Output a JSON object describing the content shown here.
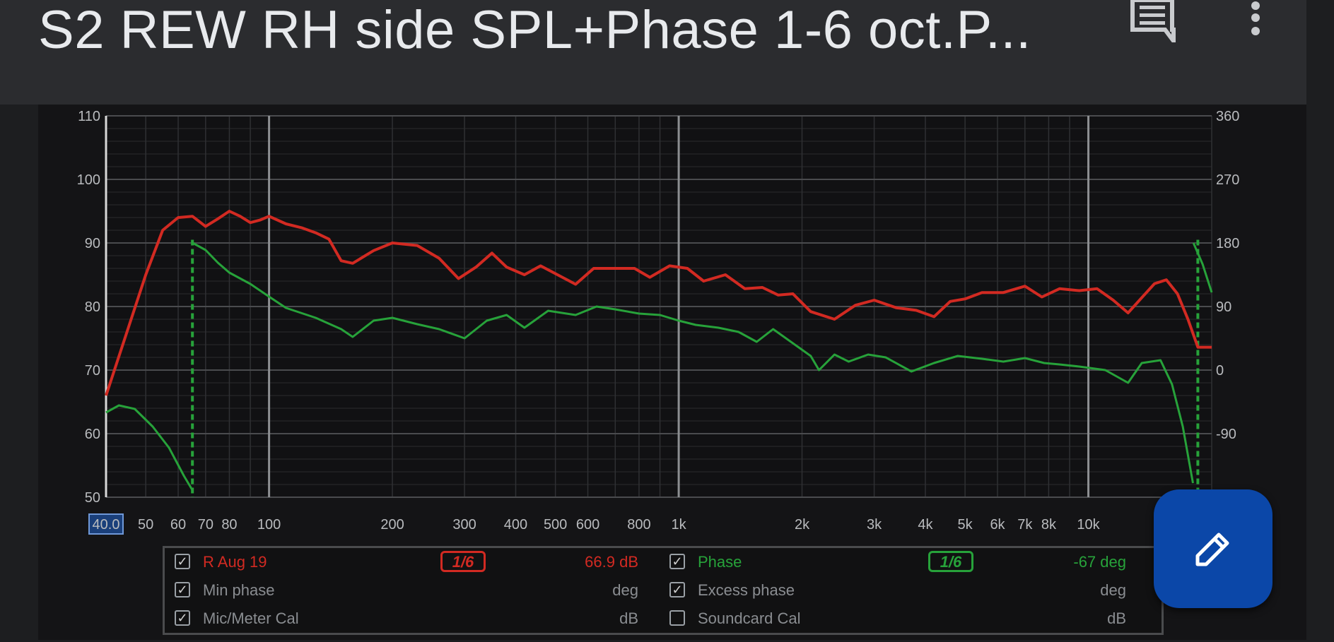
{
  "header": {
    "title": "S2 REW RH side SPL+Phase 1-6 oct.P...",
    "icons": [
      "comment-icon",
      "more-vert-icon"
    ]
  },
  "chart_data": {
    "type": "line",
    "x_scale": "log",
    "xlim": [
      40,
      20000
    ],
    "ylim": [
      50,
      110
    ],
    "y2lim": [
      -180,
      360
    ],
    "grid": true,
    "x_ticks": [
      {
        "v": 40,
        "label": "40.0"
      },
      {
        "v": 50,
        "label": "50"
      },
      {
        "v": 60,
        "label": "60"
      },
      {
        "v": 70,
        "label": "70"
      },
      {
        "v": 80,
        "label": "80"
      },
      {
        "v": 100,
        "label": "100"
      },
      {
        "v": 200,
        "label": "200"
      },
      {
        "v": 300,
        "label": "300"
      },
      {
        "v": 400,
        "label": "400"
      },
      {
        "v": 500,
        "label": "500"
      },
      {
        "v": 600,
        "label": "600"
      },
      {
        "v": 800,
        "label": "800"
      },
      {
        "v": 1000,
        "label": "1k"
      },
      {
        "v": 2000,
        "label": "2k"
      },
      {
        "v": 3000,
        "label": "3k"
      },
      {
        "v": 4000,
        "label": "4k"
      },
      {
        "v": 5000,
        "label": "5k"
      },
      {
        "v": 6000,
        "label": "6k"
      },
      {
        "v": 7000,
        "label": "7k"
      },
      {
        "v": 8000,
        "label": "8k"
      },
      {
        "v": 10000,
        "label": "10k"
      }
    ],
    "y_ticks": [
      {
        "v": 110,
        "label": "110"
      },
      {
        "v": 100,
        "label": "100"
      },
      {
        "v": 90,
        "label": "90"
      },
      {
        "v": 80,
        "label": "80"
      },
      {
        "v": 70,
        "label": "70"
      },
      {
        "v": 60,
        "label": "60"
      },
      {
        "v": 50,
        "label": "50"
      }
    ],
    "y2_ticks": [
      {
        "v": 360,
        "label": "360"
      },
      {
        "v": 270,
        "label": "270"
      },
      {
        "v": 180,
        "label": "180"
      },
      {
        "v": 90,
        "label": "90"
      },
      {
        "v": 0,
        "label": "0"
      },
      {
        "v": -90,
        "label": "-90"
      }
    ],
    "series": [
      {
        "name": "R Aug 19",
        "axis": "left",
        "color": "#d22a22",
        "points": [
          [
            40,
            66
          ],
          [
            45,
            76
          ],
          [
            50,
            85
          ],
          [
            55,
            92
          ],
          [
            60,
            94
          ],
          [
            65,
            94.2
          ],
          [
            70,
            92.6
          ],
          [
            75,
            93.8
          ],
          [
            80,
            95
          ],
          [
            85,
            94.2
          ],
          [
            90,
            93.2
          ],
          [
            95,
            93.6
          ],
          [
            100,
            94.2
          ],
          [
            110,
            93
          ],
          [
            120,
            92.4
          ],
          [
            130,
            91.6
          ],
          [
            140,
            90.6
          ],
          [
            150,
            87.2
          ],
          [
            160,
            86.8
          ],
          [
            180,
            88.8
          ],
          [
            200,
            90
          ],
          [
            230,
            89.6
          ],
          [
            260,
            87.6
          ],
          [
            290,
            84.4
          ],
          [
            320,
            86.2
          ],
          [
            350,
            88.4
          ],
          [
            380,
            86.2
          ],
          [
            420,
            85
          ],
          [
            460,
            86.4
          ],
          [
            520,
            84.6
          ],
          [
            560,
            83.5
          ],
          [
            620,
            86
          ],
          [
            700,
            86
          ],
          [
            780,
            86
          ],
          [
            850,
            84.6
          ],
          [
            950,
            86.4
          ],
          [
            1050,
            86
          ],
          [
            1150,
            84
          ],
          [
            1300,
            85
          ],
          [
            1450,
            82.8
          ],
          [
            1600,
            83
          ],
          [
            1750,
            81.8
          ],
          [
            1900,
            82
          ],
          [
            2100,
            79.2
          ],
          [
            2400,
            78
          ],
          [
            2700,
            80.2
          ],
          [
            3000,
            81
          ],
          [
            3400,
            79.8
          ],
          [
            3800,
            79.4
          ],
          [
            4200,
            78.4
          ],
          [
            4600,
            80.8
          ],
          [
            5000,
            81.2
          ],
          [
            5500,
            82.2
          ],
          [
            6200,
            82.2
          ],
          [
            7000,
            83.2
          ],
          [
            7700,
            81.5
          ],
          [
            8500,
            82.8
          ],
          [
            9500,
            82.5
          ],
          [
            10500,
            82.8
          ],
          [
            11500,
            81
          ],
          [
            12500,
            79
          ],
          [
            13500,
            81.4
          ],
          [
            14500,
            83.6
          ],
          [
            15500,
            84.2
          ],
          [
            16500,
            82
          ],
          [
            17500,
            78
          ],
          [
            18500,
            73.6
          ],
          [
            20000,
            73.6
          ]
        ]
      },
      {
        "name": "Phase",
        "axis": "right",
        "color": "#27a23a",
        "points": [
          [
            40,
            -60
          ],
          [
            43,
            -50
          ],
          [
            47,
            -55
          ],
          [
            52,
            -80
          ],
          [
            57,
            -110
          ],
          [
            62,
            -150
          ],
          [
            65,
            -170
          ],
          [
            65.1,
            180
          ],
          [
            70,
            170
          ],
          [
            75,
            152
          ],
          [
            80,
            138
          ],
          [
            90,
            122
          ],
          [
            100,
            104
          ],
          [
            110,
            88
          ],
          [
            130,
            74
          ],
          [
            150,
            58
          ],
          [
            160,
            47
          ],
          [
            180,
            70
          ],
          [
            200,
            74
          ],
          [
            230,
            65
          ],
          [
            260,
            58
          ],
          [
            300,
            45
          ],
          [
            340,
            70
          ],
          [
            380,
            78
          ],
          [
            420,
            60
          ],
          [
            480,
            84
          ],
          [
            560,
            78
          ],
          [
            630,
            90
          ],
          [
            700,
            86
          ],
          [
            800,
            80
          ],
          [
            900,
            78
          ],
          [
            1000,
            70
          ],
          [
            1100,
            64
          ],
          [
            1250,
            60
          ],
          [
            1400,
            54
          ],
          [
            1550,
            40
          ],
          [
            1700,
            58
          ],
          [
            1900,
            38
          ],
          [
            2100,
            20
          ],
          [
            2200,
            0
          ],
          [
            2400,
            22
          ],
          [
            2600,
            12
          ],
          [
            2900,
            22
          ],
          [
            3200,
            18
          ],
          [
            3700,
            -2
          ],
          [
            4200,
            10
          ],
          [
            4800,
            20
          ],
          [
            5500,
            16
          ],
          [
            6200,
            12
          ],
          [
            7000,
            17
          ],
          [
            7800,
            10
          ],
          [
            8500,
            8
          ],
          [
            9500,
            5
          ],
          [
            11000,
            0
          ],
          [
            12500,
            -18
          ],
          [
            13500,
            10
          ],
          [
            15000,
            14
          ],
          [
            16000,
            -20
          ],
          [
            17000,
            -80
          ],
          [
            18000,
            -160
          ],
          [
            18050,
            180
          ],
          [
            19000,
            150
          ],
          [
            20000,
            110
          ]
        ]
      }
    ],
    "markers": [
      {
        "x": 65,
        "color": "#27a23a",
        "style": "dashed"
      },
      {
        "x": 18500,
        "color": "#27a23a",
        "style": "dashed"
      }
    ]
  },
  "legend": {
    "rows": [
      {
        "left": {
          "checked": true,
          "label": "R Aug 19",
          "smoothing": "1/6",
          "value": "66.9 dB",
          "color": "#d22a22"
        },
        "right": {
          "checked": true,
          "label": "Phase",
          "smoothing": "1/6",
          "value": "-67 deg",
          "color": "#27a23a"
        }
      },
      {
        "left": {
          "checked": true,
          "label": "Min phase",
          "value": "deg",
          "color": "#8a8d91"
        },
        "right": {
          "checked": true,
          "label": "Excess phase",
          "value": "deg",
          "color": "#8a8d91"
        }
      },
      {
        "left": {
          "checked": true,
          "label": "Mic/Meter Cal",
          "value": "dB",
          "color": "#8a8d91"
        },
        "right": {
          "checked": false,
          "label": "Soundcard Cal",
          "value": "dB",
          "color": "#8a8d91"
        }
      }
    ]
  }
}
